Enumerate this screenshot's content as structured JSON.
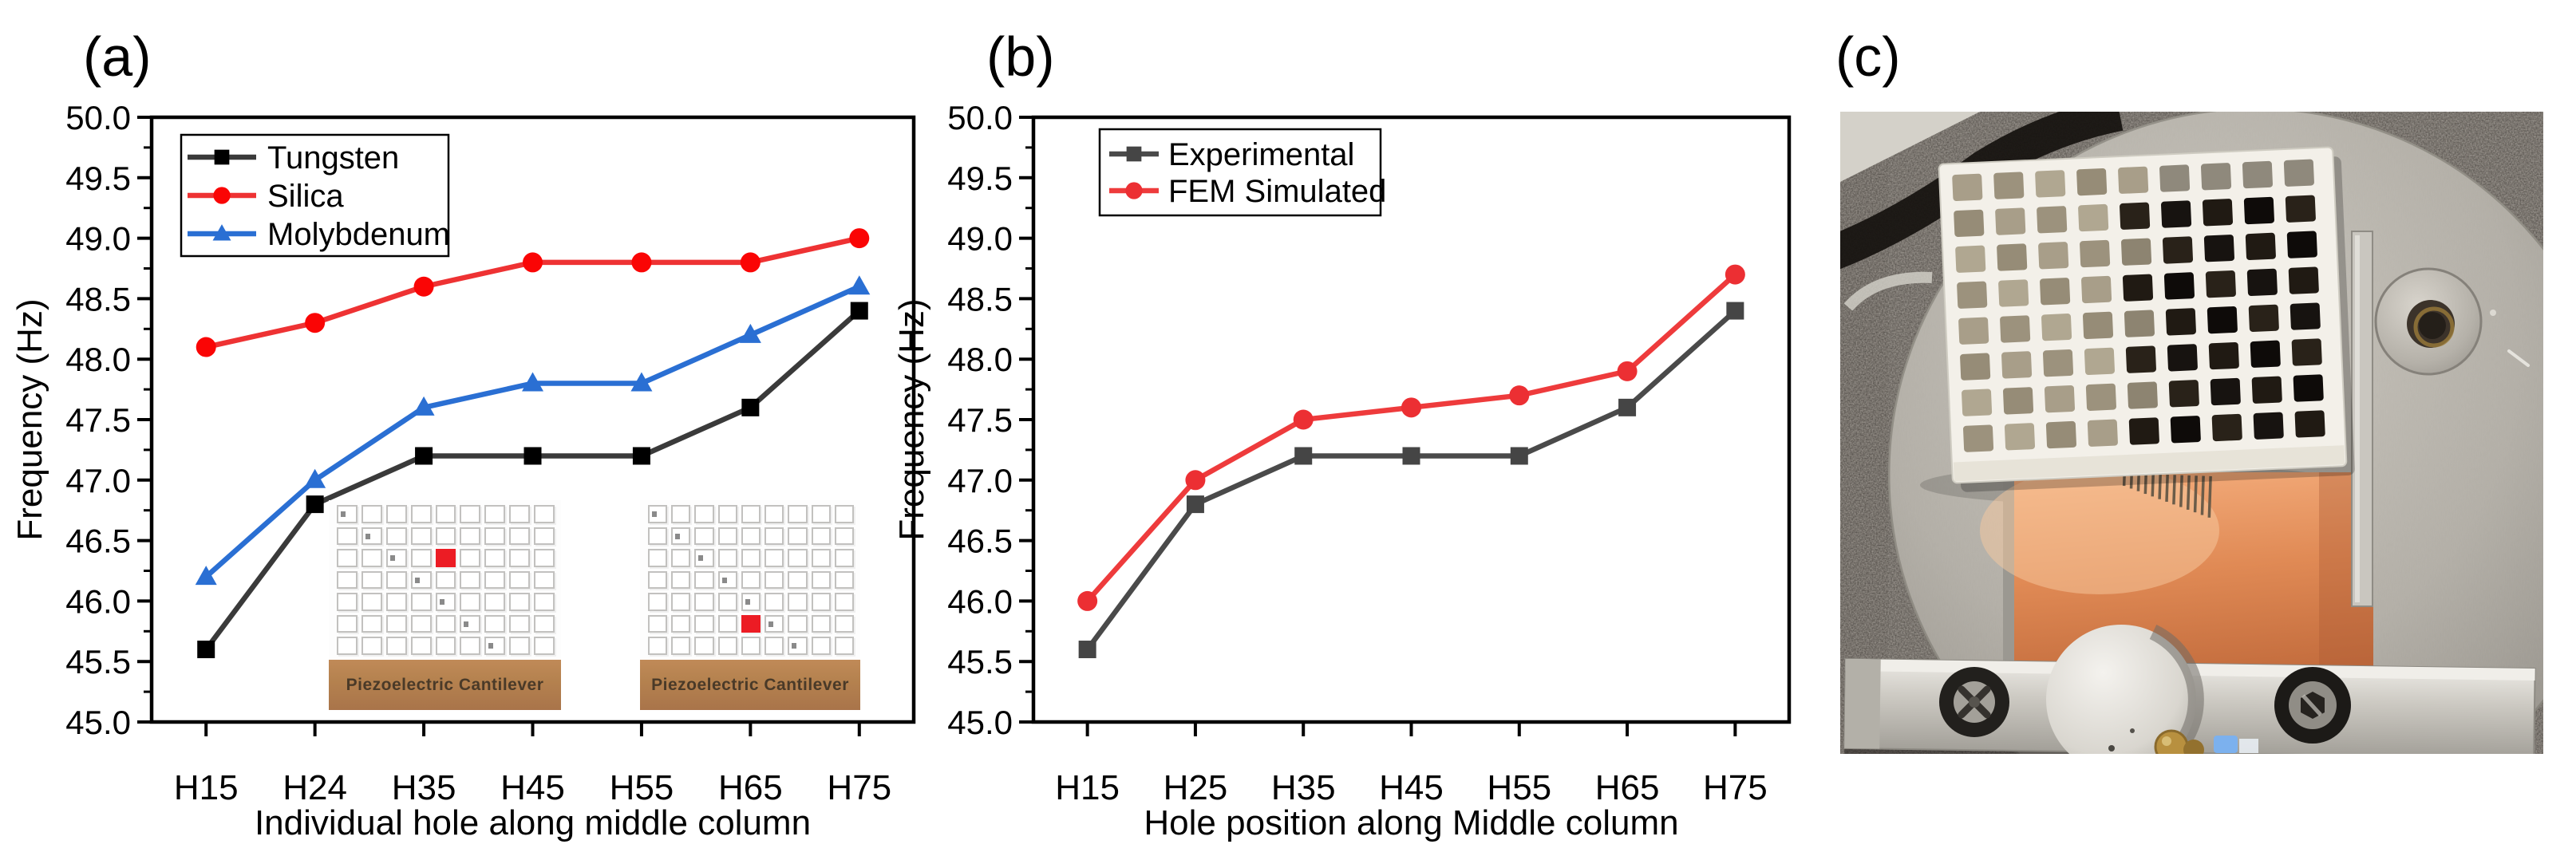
{
  "figure": {
    "panel_a_label": "(a)",
    "panel_b_label": "(b)",
    "panel_c_label": "(c)"
  },
  "chart_data": [
    {
      "id": "chart-a",
      "type": "line",
      "categories": [
        "H15",
        "H24",
        "H35",
        "H45",
        "H55",
        "H65",
        "H75"
      ],
      "series": [
        {
          "name": "Tungsten",
          "marker": "square",
          "line_color": "#3a3a3a",
          "marker_color": "#000000",
          "values": [
            45.6,
            46.8,
            47.2,
            47.2,
            47.2,
            47.6,
            48.4
          ]
        },
        {
          "name": "Silica",
          "marker": "circle",
          "line_color": "#ee3233",
          "marker_color": "#fa0505",
          "values": [
            48.1,
            48.3,
            48.6,
            48.8,
            48.8,
            48.8,
            49.0
          ]
        },
        {
          "name": "Molybdenum",
          "marker": "triangle",
          "line_color": "#2a6fd3",
          "marker_color": "#2a6fd3",
          "values": [
            46.2,
            47.0,
            47.6,
            47.8,
            47.8,
            48.2,
            48.6
          ]
        }
      ],
      "xlabel": "Individual hole along middle column",
      "ylabel": "Frequency (Hz)",
      "ylim": [
        45.0,
        50.0
      ],
      "ytick_step": 0.5,
      "legend_position": "top-left",
      "grid": false,
      "axis_color": "#000000"
    },
    {
      "id": "chart-b",
      "type": "line",
      "categories": [
        "H15",
        "H25",
        "H35",
        "H45",
        "H55",
        "H65",
        "H75"
      ],
      "series": [
        {
          "name": "Experimental",
          "marker": "square",
          "line_color": "#4a4a4a",
          "marker_color": "#454545",
          "values": [
            45.6,
            46.8,
            47.2,
            47.2,
            47.2,
            47.6,
            48.4
          ]
        },
        {
          "name": "FEM Simulated",
          "marker": "circle",
          "line_color": "#ee3b3c",
          "marker_color": "#ec2f33",
          "values": [
            46.0,
            47.0,
            47.5,
            47.6,
            47.7,
            47.9,
            48.7
          ]
        }
      ],
      "xlabel": "Hole position along Middle column",
      "ylabel": "Frequency (Hz)",
      "ylim": [
        45.0,
        50.0
      ],
      "ytick_step": 0.5,
      "legend_position": "top-left",
      "grid": false,
      "axis_color": "#000000"
    }
  ],
  "insets": {
    "label": "Piezoelectric Cantilever",
    "bar_color": "#b5824f",
    "bar_text_color": "#4a3a28",
    "cell_border_color": "#c2c1bf",
    "red_cell_color": "#ec1c24",
    "diag_dot_color": "#8a8a8a",
    "diagrams": [
      {
        "rows": 7,
        "cols": 9,
        "red_cell": {
          "row": 3,
          "col": 5
        }
      },
      {
        "rows": 7,
        "cols": 9,
        "red_cell": {
          "row": 6,
          "col": 5
        }
      }
    ]
  },
  "photo": {
    "alt": "Photograph of a white 3D-printed lattice block with square holes mounted on a copper piezoelectric cantilever, clamped by a metal bar with screws and a cylindrical mass to a circular metal stage on dark speckled ground",
    "colors": {
      "asphalt": "#4a4540",
      "disc": "#b6b2aa",
      "lattice": "#f3f0e9",
      "hole_filled": "#a39a85",
      "hole_empty": "#17130f",
      "copper": "#e08a55",
      "copper_light": "#f8c9a0",
      "clamp_bar": "#cdcac3",
      "cylinder": "#d9d6cf",
      "screw_dark": "#22201d",
      "brass": "#b8903f",
      "accent_blue": "#7cb1ee"
    }
  }
}
